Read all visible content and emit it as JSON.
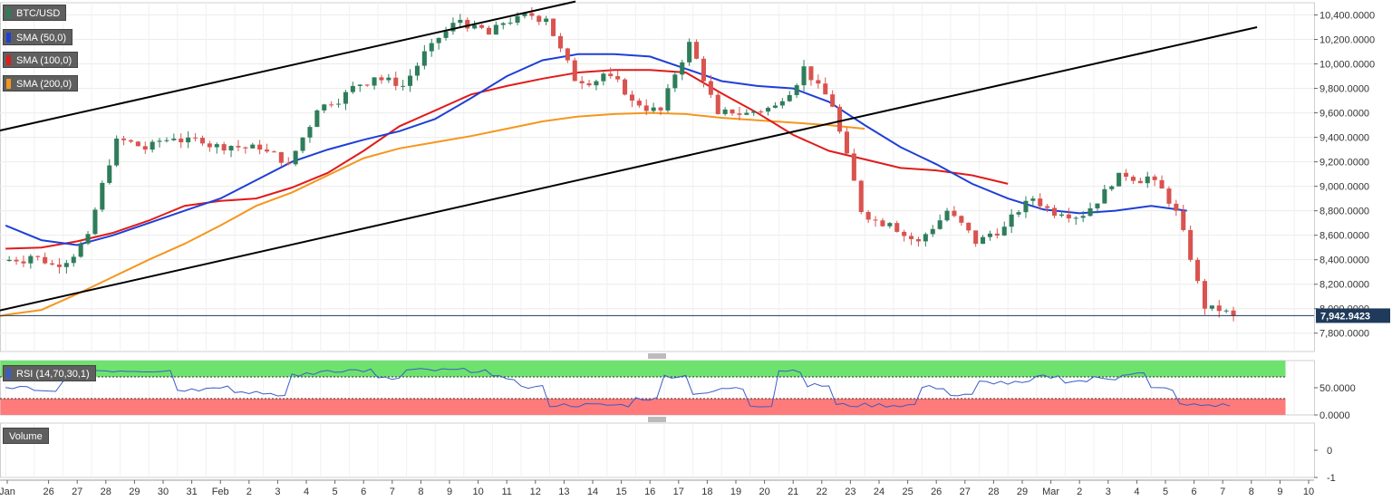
{
  "legend": {
    "symbol": "BTC/USD",
    "sma50": "SMA (50,0)",
    "sma100": "SMA (100,0)",
    "sma200": "SMA (200,0)",
    "rsi": "RSI (14,70,30,1)",
    "volume": "Volume"
  },
  "colors": {
    "up": "#2e7d5b",
    "down": "#d9534f",
    "sma50": "#1f3fd6",
    "sma100": "#e01b1b",
    "sma200": "#f5961e",
    "trend": "#000000",
    "rsi_line": "#3a5cc9",
    "rsi_overbought": "#6ee26e",
    "rsi_oversold": "#ff7a7a",
    "price_tag": "#1f3a5a"
  },
  "chart_data": [
    {
      "type": "candlestick",
      "pane": "price",
      "ylim": [
        7650,
        10500
      ],
      "y_ticks": [
        7800,
        8000,
        8200,
        8400,
        8600,
        8800,
        9000,
        9200,
        9400,
        9600,
        9800,
        10000,
        10200,
        10400
      ],
      "y_tick_labels": [
        "7,800.0000",
        "8,000.0000",
        "8,200.0000",
        "8,400.0000",
        "8,600.0000",
        "8,800.0000",
        "9,000.0000",
        "9,200.0000",
        "9,400.0000",
        "9,600.0000",
        "9,800.0000",
        "10,000.0000",
        "10,200.0000",
        "10,400.0000"
      ],
      "x_ticks": [
        "Jan",
        "26",
        "27",
        "28",
        "29",
        "30",
        "31",
        "Feb",
        "2",
        "3",
        "4",
        "5",
        "6",
        "7",
        "8",
        "9",
        "10",
        "11",
        "12",
        "13",
        "14",
        "15",
        "16",
        "17",
        "18",
        "19",
        "20",
        "21",
        "22",
        "23",
        "24",
        "25",
        "26",
        "27",
        "28",
        "29",
        "Mar",
        "2",
        "3",
        "4",
        "5",
        "6",
        "7",
        "8",
        "9",
        "10"
      ],
      "last_price": 7942.9423,
      "last_price_label": "7,942.9423",
      "daily_close": [
        8430,
        8340,
        8610,
        9390,
        9300,
        9390,
        9350,
        9330,
        9300,
        9180,
        9620,
        9770,
        9890,
        9820,
        10170,
        10360,
        10240,
        10390,
        10370,
        9860,
        9920,
        9700,
        9620,
        10180,
        9590,
        9600,
        9660,
        9980,
        9650,
        8790,
        8700,
        8550,
        8800,
        8530,
        8670,
        8900,
        8770,
        8820,
        9110,
        9080,
        8800,
        8000,
        7942
      ],
      "sma50": [
        [
          0,
          8680
        ],
        [
          1,
          8560
        ],
        [
          2,
          8520
        ],
        [
          3,
          8600
        ],
        [
          4,
          8700
        ],
        [
          5,
          8800
        ],
        [
          6,
          8900
        ],
        [
          7,
          9050
        ],
        [
          8,
          9200
        ],
        [
          9,
          9300
        ],
        [
          10,
          9380
        ],
        [
          11,
          9450
        ],
        [
          12,
          9550
        ],
        [
          13,
          9720
        ],
        [
          14,
          9900
        ],
        [
          15,
          10030
        ],
        [
          16,
          10080
        ],
        [
          17,
          10080
        ],
        [
          18,
          10060
        ],
        [
          19,
          9960
        ],
        [
          20,
          9860
        ],
        [
          21,
          9820
        ],
        [
          22,
          9800
        ],
        [
          23,
          9690
        ],
        [
          24,
          9500
        ],
        [
          25,
          9320
        ],
        [
          26,
          9180
        ],
        [
          27,
          9020
        ],
        [
          28,
          8900
        ],
        [
          29,
          8810
        ],
        [
          30,
          8780
        ],
        [
          31,
          8800
        ],
        [
          32,
          8840
        ],
        [
          33,
          8800
        ]
      ],
      "sma100": [
        [
          0,
          8490
        ],
        [
          1,
          8500
        ],
        [
          2,
          8550
        ],
        [
          3,
          8620
        ],
        [
          4,
          8720
        ],
        [
          5,
          8840
        ],
        [
          6,
          8880
        ],
        [
          7,
          8900
        ],
        [
          8,
          8990
        ],
        [
          9,
          9110
        ],
        [
          10,
          9290
        ],
        [
          11,
          9490
        ],
        [
          12,
          9620
        ],
        [
          13,
          9750
        ],
        [
          14,
          9820
        ],
        [
          15,
          9880
        ],
        [
          16,
          9930
        ],
        [
          17,
          9950
        ],
        [
          18,
          9950
        ],
        [
          19,
          9930
        ],
        [
          20,
          9760
        ],
        [
          21,
          9600
        ],
        [
          22,
          9420
        ],
        [
          23,
          9290
        ],
        [
          24,
          9220
        ],
        [
          25,
          9150
        ],
        [
          26,
          9130
        ],
        [
          27,
          9090
        ],
        [
          28,
          9020
        ]
      ],
      "sma200": [
        [
          -1,
          7880
        ],
        [
          0,
          7950
        ],
        [
          1,
          7990
        ],
        [
          2,
          8120
        ],
        [
          3,
          8260
        ],
        [
          4,
          8400
        ],
        [
          5,
          8530
        ],
        [
          6,
          8680
        ],
        [
          7,
          8840
        ],
        [
          8,
          8950
        ],
        [
          9,
          9090
        ],
        [
          10,
          9230
        ],
        [
          11,
          9310
        ],
        [
          12,
          9360
        ],
        [
          13,
          9410
        ],
        [
          14,
          9470
        ],
        [
          15,
          9530
        ],
        [
          16,
          9570
        ],
        [
          17,
          9590
        ],
        [
          18,
          9600
        ],
        [
          19,
          9590
        ],
        [
          20,
          9560
        ],
        [
          21,
          9540
        ],
        [
          22,
          9520
        ],
        [
          23,
          9500
        ],
        [
          24,
          9470
        ]
      ],
      "trendlines": [
        {
          "points": [
            [
              -1,
              9440
            ],
            [
              19.4,
              10510
            ]
          ]
        },
        {
          "points": [
            [
              -1,
              7970
            ],
            [
              43.2,
              10300
            ]
          ]
        }
      ]
    },
    {
      "type": "line",
      "pane": "rsi",
      "ylim": [
        0,
        100
      ],
      "y_ticks": [
        0,
        50
      ],
      "y_tick_labels": [
        "0.0000",
        "50.0000"
      ],
      "overbought": 70,
      "oversold": 30
    },
    {
      "type": "bar",
      "pane": "volume",
      "ylim": [
        -1,
        1
      ],
      "y_ticks": [
        -1,
        0
      ],
      "y_tick_labels": [
        "-1",
        "0"
      ]
    }
  ]
}
